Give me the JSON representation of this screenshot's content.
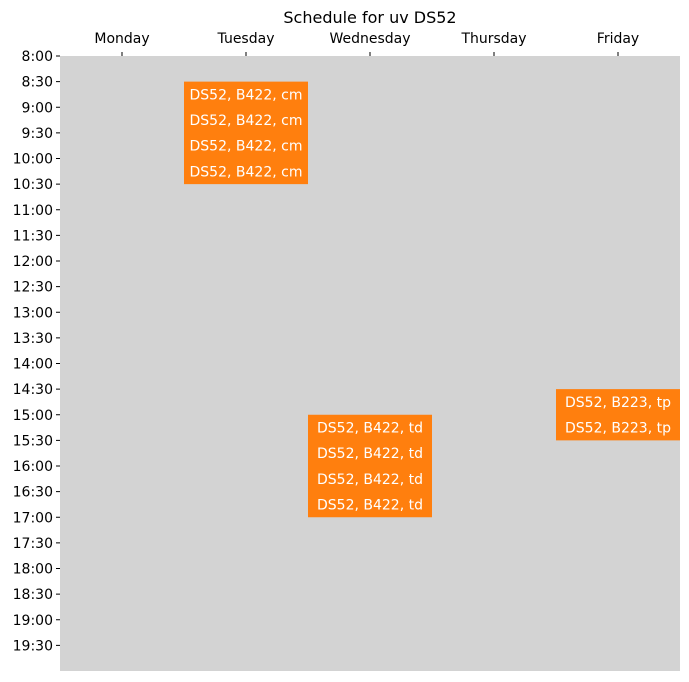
{
  "chart_data": {
    "type": "table",
    "title": "Schedule for uv DS52",
    "days": [
      "Monday",
      "Tuesday",
      "Wednesday",
      "Thursday",
      "Friday"
    ],
    "times": [
      "8:00",
      "8:30",
      "9:00",
      "9:30",
      "10:00",
      "10:30",
      "11:00",
      "11:30",
      "12:00",
      "12:30",
      "13:00",
      "13:30",
      "14:00",
      "14:30",
      "15:00",
      "15:30",
      "16:00",
      "16:30",
      "17:00",
      "17:30",
      "18:00",
      "18:30",
      "19:00",
      "19:30"
    ],
    "ylim": [
      "8:00",
      "20:00"
    ],
    "colors": {
      "background": "#d3d3d3",
      "block": "#ff7f0e",
      "block_text": "#ffffff"
    },
    "events": [
      {
        "day": "Tuesday",
        "start": "8:30",
        "end": "10:30",
        "labels": [
          "DS52, B422, cm",
          "DS52, B422, cm",
          "DS52, B422, cm",
          "DS52, B422, cm"
        ]
      },
      {
        "day": "Wednesday",
        "start": "15:00",
        "end": "17:00",
        "labels": [
          "DS52, B422, td",
          "DS52, B422, td",
          "DS52, B422, td",
          "DS52, B422, td"
        ]
      },
      {
        "day": "Friday",
        "start": "14:30",
        "end": "15:30",
        "labels": [
          "DS52, B223, tp",
          "DS52, B223, tp"
        ]
      }
    ]
  }
}
